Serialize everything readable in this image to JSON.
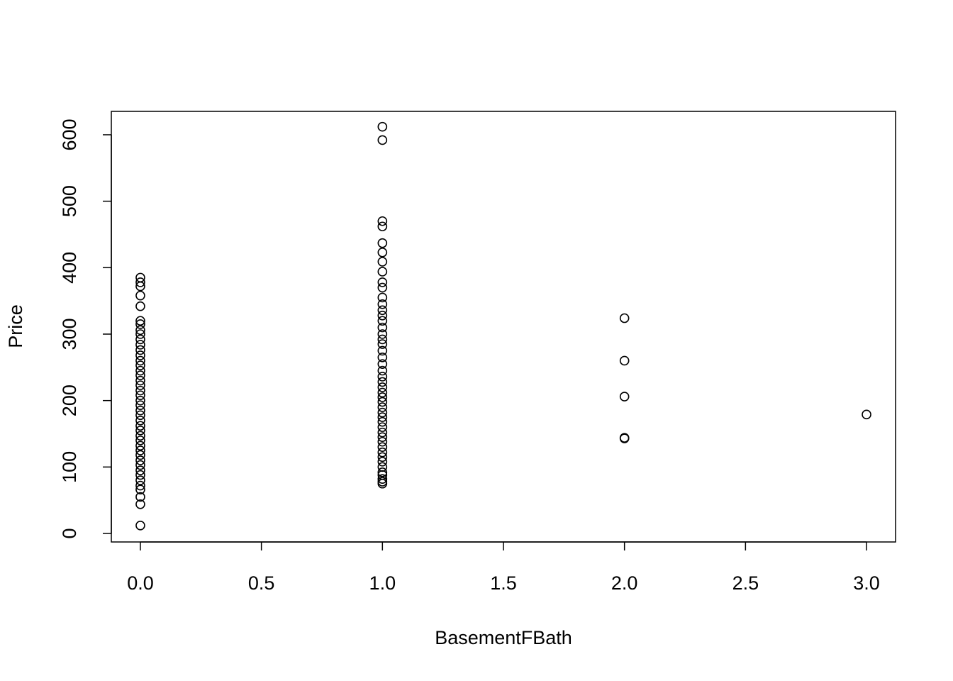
{
  "chart_data": {
    "type": "scatter",
    "x_label": "BasementFBath",
    "y_label": "Price",
    "xlim": [
      -0.12,
      3.12
    ],
    "ylim": [
      -12.8,
      635.2
    ],
    "xticks": [
      {
        "value": 0,
        "label": "0.0"
      },
      {
        "value": 0.5,
        "label": "0.5"
      },
      {
        "value": 1,
        "label": "1.0"
      },
      {
        "value": 1.5,
        "label": "1.5"
      },
      {
        "value": 2,
        "label": "2.0"
      },
      {
        "value": 2.5,
        "label": "2.5"
      },
      {
        "value": 3,
        "label": "3.0"
      }
    ],
    "yticks": [
      0,
      100,
      200,
      300,
      400,
      500,
      600
    ],
    "color": "#000000",
    "x": [
      0,
      0,
      0,
      0,
      0,
      0,
      0,
      0,
      0,
      0,
      0,
      0,
      0,
      0,
      0,
      0,
      0,
      0,
      0,
      0,
      0,
      0,
      0,
      0,
      0,
      0,
      0,
      0,
      0,
      0,
      0,
      0,
      0,
      0,
      0,
      0,
      0,
      0,
      0,
      0,
      0,
      0,
      0,
      1,
      1,
      1,
      1,
      1,
      1,
      1,
      1,
      1,
      1,
      1,
      1,
      1,
      1,
      1,
      1,
      1,
      1,
      1,
      1,
      1,
      1,
      1,
      1,
      1,
      1,
      1,
      1,
      1,
      1,
      1,
      1,
      1,
      1,
      1,
      1,
      1,
      1,
      1,
      1,
      1,
      1,
      1,
      1,
      1,
      1,
      1,
      2,
      2,
      2,
      2,
      2,
      3
    ],
    "values": [
      12,
      44,
      55,
      66,
      72,
      80,
      88,
      95,
      103,
      110,
      118,
      125,
      132,
      140,
      147,
      155,
      162,
      170,
      178,
      185,
      193,
      200,
      208,
      215,
      223,
      230,
      238,
      245,
      253,
      260,
      268,
      276,
      284,
      292,
      300,
      306,
      315,
      320,
      342,
      358,
      372,
      378,
      385,
      75,
      78,
      82,
      88,
      92,
      100,
      108,
      115,
      122,
      130,
      138,
      145,
      152,
      160,
      168,
      175,
      182,
      190,
      198,
      205,
      212,
      220,
      228,
      236,
      245,
      255,
      265,
      275,
      285,
      292,
      300,
      310,
      320,
      328,
      336,
      345,
      355,
      370,
      378,
      394,
      409,
      423,
      437,
      462,
      470,
      592,
      612,
      143,
      144,
      206,
      260,
      324,
      179
    ]
  }
}
